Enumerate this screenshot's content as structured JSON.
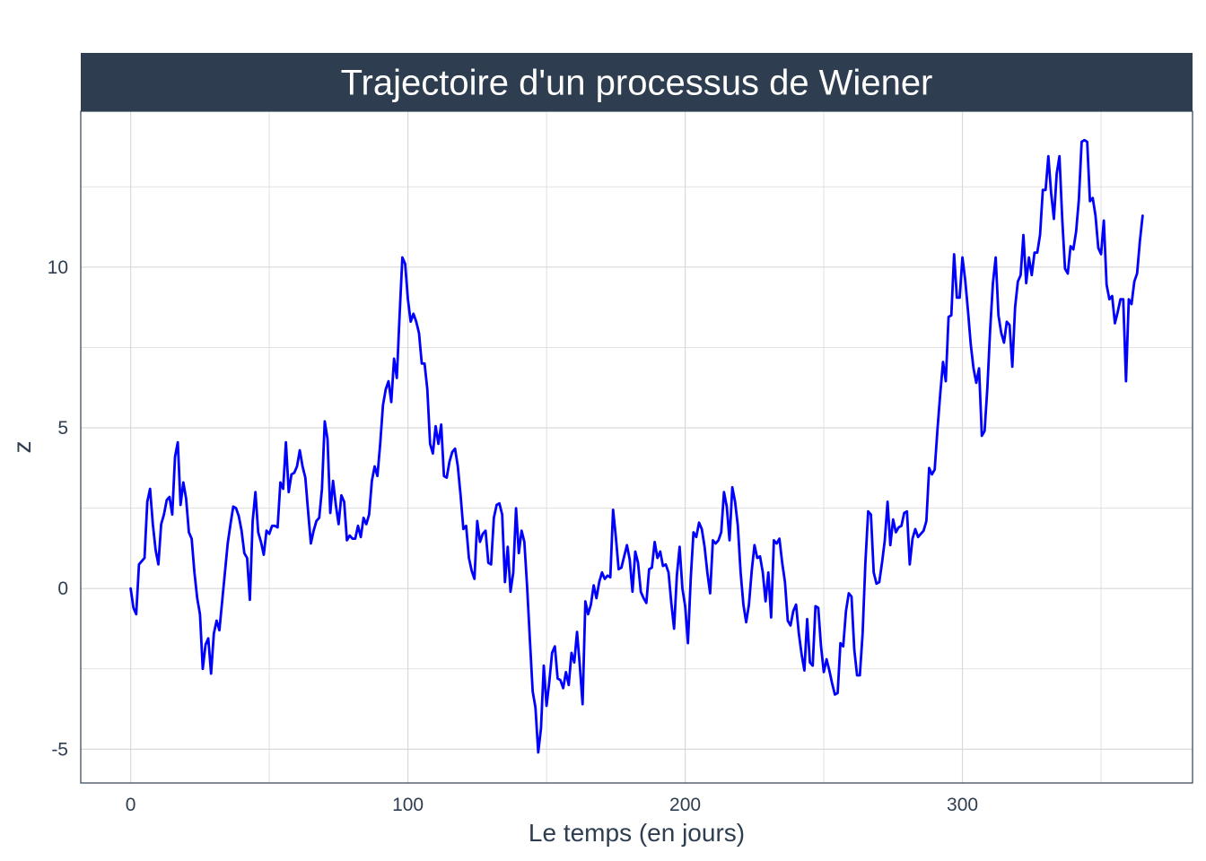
{
  "chart_data": {
    "type": "line",
    "title": "Trajectoire d'un processus de Wiener",
    "xlabel": "Le temps (en jours)",
    "ylabel": "z",
    "xlim": [
      -18,
      383
    ],
    "ylim": [
      -6.05,
      14.85
    ],
    "x_ticks": [
      0,
      100,
      200,
      300
    ],
    "x_tick_labels": [
      "0",
      "100",
      "200",
      "300"
    ],
    "y_ticks": [
      -5,
      0,
      5,
      10
    ],
    "y_tick_labels": [
      "-5",
      "0",
      "5",
      "10"
    ],
    "grid": true,
    "legend": "none",
    "colors": {
      "line": "#0000ff",
      "header": "#2e3e50",
      "grid": "#d9d9d9",
      "text": "#2e3e50"
    },
    "series": [
      {
        "x": [
          0,
          1,
          2,
          3,
          4,
          5,
          6,
          7,
          8,
          9,
          10,
          11,
          12,
          13,
          14,
          15,
          16,
          17,
          18,
          19,
          20,
          21,
          22,
          23,
          24,
          25,
          26,
          27,
          28,
          29,
          30,
          31,
          32,
          33,
          34,
          35,
          36,
          37,
          38,
          39,
          40,
          41,
          42,
          43,
          44,
          45,
          46,
          47,
          48,
          49,
          50,
          51,
          52,
          53,
          54,
          55,
          56,
          57,
          58,
          59,
          60,
          61,
          62,
          63,
          64,
          65,
          66,
          67,
          68,
          69,
          70,
          71,
          72,
          73,
          74,
          75,
          76,
          77,
          78,
          79,
          80,
          81,
          82,
          83,
          84,
          85,
          86,
          87,
          88,
          89,
          90,
          91,
          92,
          93,
          94,
          95,
          96,
          97,
          98,
          99,
          100,
          101,
          102,
          103,
          104,
          105,
          106,
          107,
          108,
          109,
          110,
          111,
          112,
          113,
          114,
          115,
          116,
          117,
          118,
          119,
          120,
          121,
          122,
          123,
          124,
          125,
          126,
          127,
          128,
          129,
          130,
          131,
          132,
          133,
          134,
          135,
          136,
          137,
          138,
          139,
          140,
          141,
          142,
          143,
          144,
          145,
          146,
          147,
          148,
          149,
          150,
          151,
          152,
          153,
          154,
          155,
          156,
          157,
          158,
          159,
          160,
          161,
          162,
          163,
          164,
          165,
          166,
          167,
          168,
          169,
          170,
          171,
          172,
          173,
          174,
          175,
          176,
          177,
          178,
          179,
          180,
          181,
          182,
          183,
          184,
          185,
          186,
          187,
          188,
          189,
          190,
          191,
          192,
          193,
          194,
          195,
          196,
          197,
          198,
          199,
          200,
          201,
          202,
          203,
          204,
          205,
          206,
          207,
          208,
          209,
          210,
          211,
          212,
          213,
          214,
          215,
          216,
          217,
          218,
          219,
          220,
          221,
          222,
          223,
          224,
          225,
          226,
          227,
          228,
          229,
          230,
          231,
          232,
          233,
          234,
          235,
          236,
          237,
          238,
          239,
          240,
          241,
          242,
          243,
          244,
          245,
          246,
          247,
          248,
          249,
          250,
          251,
          252,
          253,
          254,
          255,
          256,
          257,
          258,
          259,
          260,
          261,
          262,
          263,
          264,
          265,
          266,
          267,
          268,
          269,
          270,
          271,
          272,
          273,
          274,
          275,
          276,
          277,
          278,
          279,
          280,
          281,
          282,
          283,
          284,
          285,
          286,
          287,
          288,
          289,
          290,
          291,
          292,
          293,
          294,
          295,
          296,
          297,
          298,
          299,
          300,
          301,
          302,
          303,
          304,
          305,
          306,
          307,
          308,
          309,
          310,
          311,
          312,
          313,
          314,
          315,
          316,
          317,
          318,
          319,
          320,
          321,
          322,
          323,
          324,
          325,
          326,
          327,
          328,
          329,
          330,
          331,
          332,
          333,
          334,
          335,
          336,
          337,
          338,
          339,
          340,
          341,
          342,
          343,
          344,
          345,
          346,
          347,
          348,
          349,
          350,
          351,
          352,
          353,
          354,
          355,
          356,
          357,
          358,
          359,
          360,
          361,
          362,
          363,
          364,
          365
        ],
        "values": [
          0,
          -0.6,
          -0.8,
          0.75,
          0.85,
          0.95,
          2.7,
          3.1,
          2.0,
          1.2,
          0.75,
          2.0,
          2.3,
          2.75,
          2.85,
          2.3,
          4.1,
          4.55,
          2.6,
          3.3,
          2.8,
          1.75,
          1.55,
          0.5,
          -0.3,
          -0.8,
          -2.5,
          -1.75,
          -1.55,
          -2.65,
          -1.4,
          -1.0,
          -1.3,
          -0.4,
          0.5,
          1.4,
          2.0,
          2.55,
          2.5,
          2.25,
          1.8,
          1.1,
          0.95,
          -0.35,
          2.1,
          3.0,
          1.75,
          1.45,
          1.05,
          1.8,
          1.7,
          1.95,
          1.95,
          1.9,
          3.3,
          3.1,
          4.55,
          3.0,
          3.55,
          3.6,
          3.8,
          4.3,
          3.8,
          3.45,
          2.4,
          1.4,
          1.8,
          2.1,
          2.2,
          3.1,
          5.2,
          4.65,
          2.35,
          3.35,
          2.6,
          2.0,
          2.9,
          2.7,
          1.5,
          1.65,
          1.55,
          1.55,
          1.95,
          1.6,
          2.2,
          2.0,
          2.3,
          3.35,
          3.8,
          3.5,
          4.5,
          5.7,
          6.2,
          6.45,
          5.8,
          7.15,
          6.55,
          8.5,
          10.3,
          10.1,
          9.0,
          8.3,
          8.55,
          8.3,
          7.95,
          7.0,
          7.0,
          6.2,
          4.5,
          4.2,
          5.05,
          4.5,
          5.1,
          3.5,
          3.45,
          3.95,
          4.25,
          4.35,
          3.8,
          2.9,
          1.85,
          1.95,
          0.95,
          0.55,
          0.3,
          2.1,
          1.45,
          1.7,
          1.8,
          0.8,
          0.75,
          2.2,
          2.6,
          2.65,
          2.3,
          0.2,
          1.3,
          -0.1,
          0.5,
          2.5,
          1.1,
          1.8,
          1.45,
          0.05,
          -1.6,
          -3.2,
          -3.7,
          -5.1,
          -4.35,
          -2.4,
          -3.65,
          -2.9,
          -2.0,
          -1.8,
          -2.8,
          -2.85,
          -3.1,
          -2.6,
          -3.0,
          -2.0,
          -2.3,
          -1.35,
          -2.4,
          -3.6,
          -0.4,
          -0.8,
          -0.5,
          0.1,
          -0.3,
          0.2,
          0.5,
          0.3,
          0.4,
          0.35,
          2.45,
          1.6,
          0.6,
          0.65,
          1.0,
          1.35,
          0.9,
          -0.1,
          1.15,
          0.8,
          -0.1,
          -0.3,
          -0.45,
          0.6,
          0.65,
          1.45,
          0.95,
          1.15,
          0.7,
          0.75,
          0.5,
          -0.45,
          -1.25,
          0.4,
          1.3,
          0.0,
          -0.55,
          -1.7,
          0.3,
          1.75,
          1.6,
          2.05,
          1.85,
          1.3,
          0.5,
          -0.15,
          1.5,
          1.4,
          1.5,
          1.75,
          3.0,
          2.55,
          1.5,
          3.15,
          2.7,
          1.95,
          0.5,
          -0.5,
          -1.05,
          -0.5,
          0.55,
          1.35,
          0.95,
          1.0,
          0.5,
          -0.4,
          0.5,
          -0.9,
          1.5,
          1.4,
          1.55,
          0.8,
          0.2,
          -1.0,
          -1.15,
          -0.7,
          -0.5,
          -1.4,
          -2.05,
          -2.55,
          -0.95,
          -2.3,
          -2.4,
          -0.55,
          -0.6,
          -1.8,
          -2.6,
          -2.2,
          -2.55,
          -2.95,
          -3.3,
          -3.25,
          -1.7,
          -1.8,
          -0.7,
          -0.15,
          -0.25,
          -1.9,
          -2.7,
          -2.7,
          -1.4,
          0.8,
          2.4,
          2.3,
          0.5,
          0.15,
          0.2,
          0.8,
          1.5,
          2.7,
          1.35,
          2.15,
          1.75,
          1.9,
          1.95,
          2.35,
          2.4,
          0.75,
          1.55,
          1.85,
          1.6,
          1.7,
          1.8,
          2.1,
          3.75,
          3.55,
          3.7,
          4.95,
          6.05,
          7.05,
          6.45,
          8.45,
          8.5,
          10.4,
          9.05,
          9.05,
          10.3,
          9.6,
          8.65,
          7.6,
          6.85,
          6.4,
          6.85,
          4.75,
          4.9,
          6.25,
          8.05,
          9.5,
          10.3,
          8.5,
          7.95,
          7.65,
          8.3,
          8.2,
          6.9,
          8.75,
          9.55,
          9.75,
          11.0,
          9.5,
          10.3,
          9.75,
          10.45,
          10.45,
          11.0,
          12.4,
          12.4,
          13.45,
          12.3,
          11.5,
          12.9,
          13.45,
          11.5,
          9.95,
          9.8,
          10.65,
          10.55,
          11.1,
          12.1,
          13.9,
          13.95,
          13.9,
          12.05,
          12.15,
          11.6,
          10.6,
          10.4,
          11.45,
          9.45,
          9.0,
          9.1,
          8.25,
          8.6,
          9.0,
          9.0,
          6.45,
          9.0,
          8.85,
          9.55,
          9.8,
          10.8,
          11.6
        ]
      }
    ]
  }
}
